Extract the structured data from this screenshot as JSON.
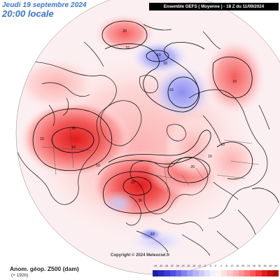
{
  "header": {
    "date": "Jeudi 19 septembre 2024",
    "time": "20:00 locale",
    "model_run": "Ensemble GEFS  ( Moyenne )  -  18 Z du 11/09/2024"
  },
  "footer": {
    "field": "Anom. géop. Z500 (dam)",
    "lead": "(+ 192h)",
    "copyright": "Copyright © 2024 Meteociel.fr"
  },
  "colorbar": {
    "ticks": [
      "-44",
      "-40",
      "-36",
      "-32",
      "-28",
      "-24",
      "-20",
      "-16",
      "-12",
      "-8",
      "-4",
      "0",
      "4",
      "8",
      "12",
      "16",
      "20",
      "24",
      "28",
      "32",
      "36",
      "40",
      "44"
    ],
    "colors": [
      "#1c1ca8",
      "#2929c0",
      "#3a3ad4",
      "#4f4fe0",
      "#6868e8",
      "#8282ee",
      "#9c9cf2",
      "#b4b4f6",
      "#cacafa",
      "#dfdffc",
      "#f2f2ff",
      "#fff3f3",
      "#ffe0e0",
      "#ffcaca",
      "#ffb0b0",
      "#ff9494",
      "#ff7676",
      "#ff5656",
      "#f53636",
      "#e01c1c",
      "#c80d0d",
      "#ad0505"
    ]
  },
  "anomalies": [
    {
      "label": "20",
      "sign": "positive"
    },
    {
      "label": "10",
      "sign": "positive"
    },
    {
      "label": "-10",
      "sign": "negative"
    },
    {
      "label": "-10",
      "sign": "negative"
    },
    {
      "label": "10",
      "sign": "positive"
    },
    {
      "label": "20",
      "sign": "positive"
    },
    {
      "label": "10",
      "sign": "positive"
    },
    {
      "label": "10",
      "sign": "positive"
    },
    {
      "label": "10",
      "sign": "positive"
    },
    {
      "label": "10",
      "sign": "positive"
    },
    {
      "label": "20",
      "sign": "positive"
    },
    {
      "label": "30",
      "sign": "positive"
    },
    {
      "label": "20",
      "sign": "positive"
    },
    {
      "label": "10",
      "sign": "positive"
    },
    {
      "label": "10",
      "sign": "positive"
    },
    {
      "label": "-10",
      "sign": "negative"
    }
  ]
}
